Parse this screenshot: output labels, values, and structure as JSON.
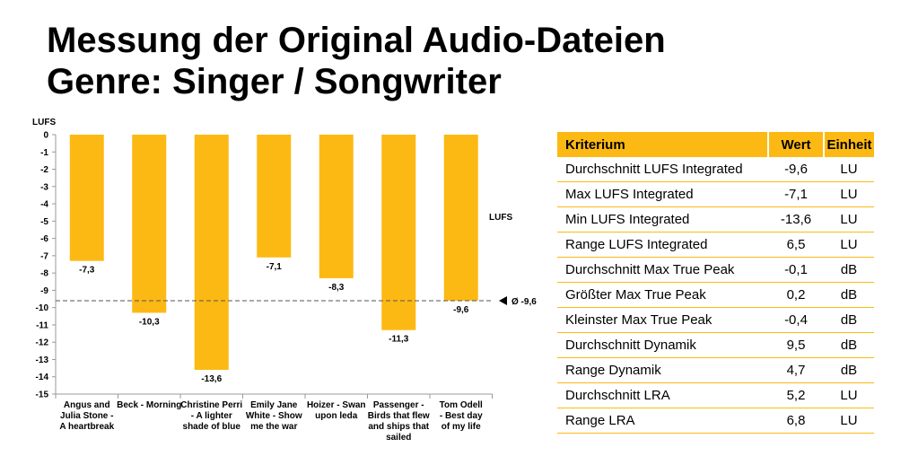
{
  "title": {
    "line1": "Messung der Original Audio-Dateien",
    "line2": "Genre: Singer / Songwriter"
  },
  "chart_data": {
    "type": "bar",
    "ylabel": "LUFS",
    "series_label": "LUFS",
    "categories": [
      [
        "Angus and",
        "Julia Stone -",
        "A heartbreak"
      ],
      [
        "Beck - Morning"
      ],
      [
        "Christine Perri",
        "- A lighter",
        "shade of blue"
      ],
      [
        "Emily Jane",
        "White - Show",
        "me the war"
      ],
      [
        "Hoizer - Swan",
        "upon leda"
      ],
      [
        "Passenger -",
        "Birds that flew",
        "and ships that",
        "sailed"
      ],
      [
        "Tom Odell",
        "- Best day",
        "of my life"
      ]
    ],
    "values": [
      -7.3,
      -10.3,
      -13.6,
      -7.1,
      -8.3,
      -11.3,
      -9.6
    ],
    "value_labels": [
      "-7,3",
      "-10,3",
      "-13,6",
      "-7,1",
      "-8,3",
      "-11,3",
      "-9,6"
    ],
    "ylim": [
      -15,
      0
    ],
    "yticks": [
      0,
      -1,
      -2,
      -3,
      -4,
      -5,
      -6,
      -7,
      -8,
      -9,
      -10,
      -11,
      -12,
      -13,
      -14,
      -15
    ],
    "reference_line": {
      "value": -9.6,
      "label": "Ø -9,6"
    },
    "bar_color": "#FDB913",
    "grid": false
  },
  "table": {
    "headers": [
      "Kriterium",
      "Wert",
      "Einheit"
    ],
    "rows": [
      [
        "Durchschnitt LUFS Integrated",
        "-9,6",
        "LU"
      ],
      [
        "Max LUFS Integrated",
        "-7,1",
        "LU"
      ],
      [
        "Min LUFS Integrated",
        "-13,6",
        "LU"
      ],
      [
        "Range LUFS Integrated",
        "6,5",
        "LU"
      ],
      [
        "Durchschnitt Max True Peak",
        "-0,1",
        "dB"
      ],
      [
        "Größter Max True Peak",
        "0,2",
        "dB"
      ],
      [
        "Kleinster Max True Peak",
        "-0,4",
        "dB"
      ],
      [
        "Durchschnitt Dynamik",
        "9,5",
        "dB"
      ],
      [
        "Range Dynamik",
        "4,7",
        "dB"
      ],
      [
        "Durchschnitt LRA",
        "5,2",
        "LU"
      ],
      [
        "Range LRA",
        "6,8",
        "LU"
      ]
    ],
    "header_color": "#FDB913",
    "line_color": "#FDB913"
  }
}
